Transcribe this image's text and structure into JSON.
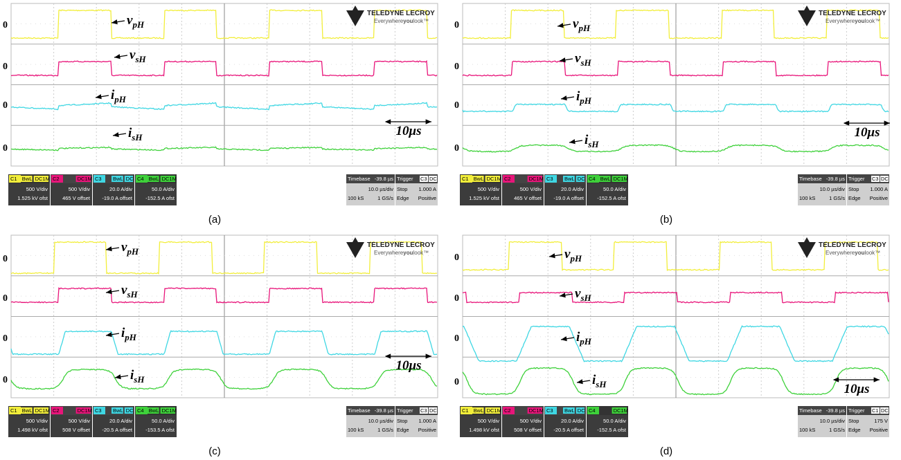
{
  "panels": [
    {
      "caption": "(a)",
      "zero_labels": [
        "0",
        "0",
        "0",
        "0"
      ],
      "signals": [
        {
          "symbol": "v",
          "subscript": "pH"
        },
        {
          "symbol": "v",
          "subscript": "sH"
        },
        {
          "symbol": "i",
          "subscript": "pH"
        },
        {
          "symbol": "i",
          "subscript": "sH"
        }
      ],
      "time_scale": "10μs",
      "logo": {
        "brand": "TELEDYNE LECROY",
        "tagline_start": "Everywhere",
        "tagline_bold": "you",
        "tagline_end": "look™"
      },
      "channels": [
        {
          "id": "C1",
          "flags": [
            "BwL",
            "DC1M"
          ],
          "scale": "500 V/div",
          "offset": "1.525 kV ofst"
        },
        {
          "id": "C2",
          "flags": [
            "DC1M"
          ],
          "scale": "500 V/div",
          "offset": "465 V offset"
        },
        {
          "id": "C3",
          "flags": [
            "BwL",
            "DC"
          ],
          "scale": "20.0 A/div",
          "offset": "-19.0 A offset"
        },
        {
          "id": "C4",
          "flags": [
            "BwL",
            "DC1M"
          ],
          "scale": "50.0 A/div",
          "offset": "-152.5 A ofst"
        }
      ],
      "timebase": {
        "label": "Timebase",
        "delay": "-39.8 µs",
        "scale": "10.0 µs/div",
        "samples": "100 kS",
        "rate": "1 GS/s"
      },
      "trigger": {
        "label": "Trigger",
        "source": "C3",
        "coupling": "DC",
        "mode": "Stop",
        "level": "1.000 A",
        "type": "Edge",
        "slope": "Positive"
      }
    },
    {
      "caption": "(b)",
      "zero_labels": [
        "0",
        "0",
        "0",
        "0"
      ],
      "signals": [
        {
          "symbol": "v",
          "subscript": "pH"
        },
        {
          "symbol": "v",
          "subscript": "sH"
        },
        {
          "symbol": "i",
          "subscript": "pH"
        },
        {
          "symbol": "i",
          "subscript": "sH"
        }
      ],
      "time_scale": "10μs",
      "logo": {
        "brand": "TELEDYNE LECROY",
        "tagline_start": "Everywhere",
        "tagline_bold": "you",
        "tagline_end": "look™"
      },
      "channels": [
        {
          "id": "C1",
          "flags": [
            "BwL",
            "DC1M"
          ],
          "scale": "500 V/div",
          "offset": "1.525 kV ofst"
        },
        {
          "id": "C2",
          "flags": [
            "DC1M"
          ],
          "scale": "500 V/div",
          "offset": "465 V offset"
        },
        {
          "id": "C3",
          "flags": [
            "BwL",
            "DC"
          ],
          "scale": "20.0 A/div",
          "offset": "-19.0 A offset"
        },
        {
          "id": "C4",
          "flags": [
            "BwL",
            "DC1M"
          ],
          "scale": "50.0 A/div",
          "offset": "-152.5 A ofst"
        }
      ],
      "timebase": {
        "label": "Timebase",
        "delay": "-39.8 µs",
        "scale": "10.0 µs/div",
        "samples": "100 kS",
        "rate": "1 GS/s"
      },
      "trigger": {
        "label": "Trigger",
        "source": "C3",
        "coupling": "DC",
        "mode": "Stop",
        "level": "1.000 A",
        "type": "Edge",
        "slope": "Positive"
      }
    },
    {
      "caption": "(c)",
      "zero_labels": [
        "0",
        "0",
        "0",
        "0"
      ],
      "signals": [
        {
          "symbol": "v",
          "subscript": "pH"
        },
        {
          "symbol": "v",
          "subscript": "sH"
        },
        {
          "symbol": "i",
          "subscript": "pH"
        },
        {
          "symbol": "i",
          "subscript": "sH"
        }
      ],
      "time_scale": "10μs",
      "logo": {
        "brand": "TELEDYNE LECROY",
        "tagline_start": "Everywhere",
        "tagline_bold": "you",
        "tagline_end": "look™"
      },
      "channels": [
        {
          "id": "C1",
          "flags": [
            "BwL",
            "DC1M"
          ],
          "scale": "500 V/div",
          "offset": "1.498 kV ofst"
        },
        {
          "id": "C2",
          "flags": [
            "DC1M"
          ],
          "scale": "500 V/div",
          "offset": "508 V offset"
        },
        {
          "id": "C3",
          "flags": [
            "BwL",
            "DC"
          ],
          "scale": "20.0 A/div",
          "offset": "-20.5 A offset"
        },
        {
          "id": "C4",
          "flags": [
            "BwL",
            "DC1M"
          ],
          "scale": "50.0 A/div",
          "offset": "-153.5 A ofst"
        }
      ],
      "timebase": {
        "label": "Timebase",
        "delay": "-39.8 µs",
        "scale": "10.0 µs/div",
        "samples": "100 kS",
        "rate": "1 GS/s"
      },
      "trigger": {
        "label": "Trigger",
        "source": "C3",
        "coupling": "DC",
        "mode": "Stop",
        "level": "1.000 A",
        "type": "Edge",
        "slope": "Positive"
      }
    },
    {
      "caption": "(d)",
      "zero_labels": [
        "0",
        "0",
        "0",
        "0"
      ],
      "signals": [
        {
          "symbol": "v",
          "subscript": "pH"
        },
        {
          "symbol": "v",
          "subscript": "sH"
        },
        {
          "symbol": "i",
          "subscript": "pH"
        },
        {
          "symbol": "i",
          "subscript": "sH"
        }
      ],
      "time_scale": "10μs",
      "logo": {
        "brand": "TELEDYNE LECROY",
        "tagline_start": "Everywhere",
        "tagline_bold": "you",
        "tagline_end": "look™"
      },
      "channels": [
        {
          "id": "C1",
          "flags": [
            "BwL",
            "DC1M"
          ],
          "scale": "500 V/div",
          "offset": "1.498 kV ofst"
        },
        {
          "id": "C2",
          "flags": [
            "DC1M"
          ],
          "scale": "500 V/div",
          "offset": "508 V offset"
        },
        {
          "id": "C3",
          "flags": [
            "BwL",
            "DC"
          ],
          "scale": "20.0 A/div",
          "offset": "-20.5 A offset"
        },
        {
          "id": "C4",
          "flags": [
            "DC1M"
          ],
          "scale": "50.0 A/div",
          "offset": "-152.5 A ofst"
        }
      ],
      "timebase": {
        "label": "Timebase",
        "delay": "-39.8 µs",
        "scale": "10.0 µs/div",
        "samples": "100 kS",
        "rate": "1 GS/s"
      },
      "trigger": {
        "label": "Trigger",
        "source": "C1",
        "coupling": "DC",
        "mode": "Stop",
        "level": "175 V",
        "type": "Edge",
        "slope": "Positive"
      }
    }
  ]
}
